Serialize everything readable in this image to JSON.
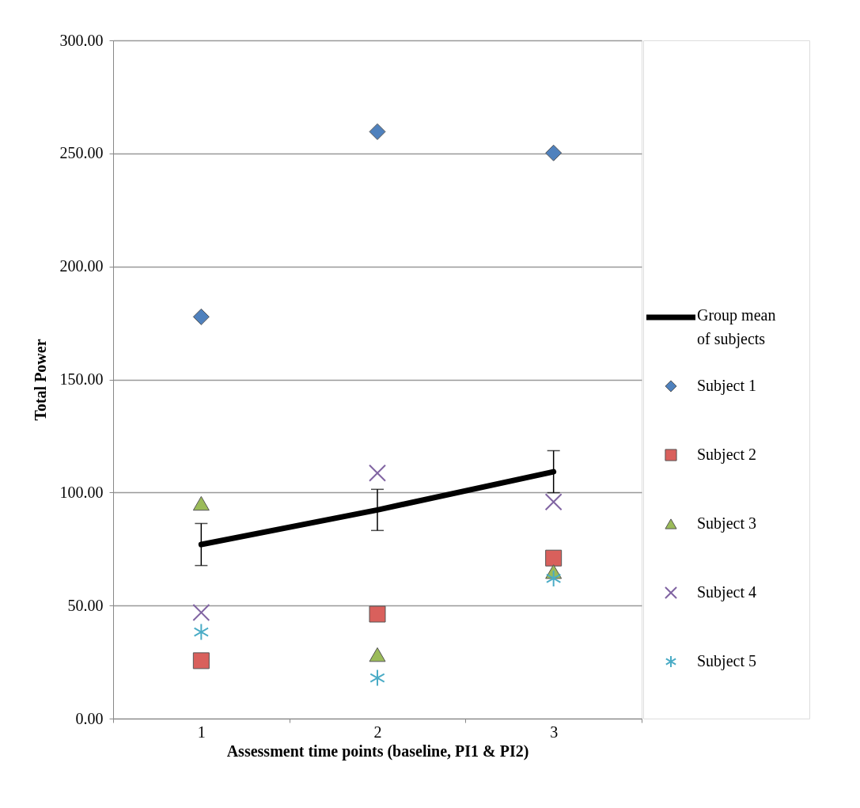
{
  "chart_data": {
    "type": "scatter",
    "xlabel": "Assessment time points (baseline, PI1 & PI2)",
    "ylabel": "Total Power",
    "categories": [
      "1",
      "2",
      "3"
    ],
    "ylim": [
      0,
      300
    ],
    "yticks": [
      {
        "value": 0,
        "label": "0.00"
      },
      {
        "value": 50,
        "label": "50.00"
      },
      {
        "value": 100,
        "label": "100.00"
      },
      {
        "value": 150,
        "label": "150.00"
      },
      {
        "value": 200,
        "label": "200.00"
      },
      {
        "value": 250,
        "label": "250.00"
      },
      {
        "value": 300,
        "label": "300.00"
      }
    ],
    "grid": "y",
    "legend": "right",
    "series": [
      {
        "name": "Group mean of subjects",
        "type": "line",
        "color": "#000000",
        "marker": "none",
        "values": [
          77,
          92.3,
          109.2
        ],
        "errors": [
          9.3,
          9.1,
          9.3
        ]
      },
      {
        "name": "Subject 1",
        "color": "#4f81bd",
        "marker": "diamond",
        "values": [
          177.7,
          259.6,
          250.2
        ]
      },
      {
        "name": "Subject 2",
        "color": "#d9605c",
        "marker": "square",
        "values": [
          25.6,
          46.2,
          71
        ]
      },
      {
        "name": "Subject 3",
        "color": "#9bbb59",
        "marker": "triangle",
        "values": [
          95.2,
          28.3,
          65
        ]
      },
      {
        "name": "Subject 4",
        "color": "#8064a2",
        "marker": "cross",
        "values": [
          46.9,
          108.6,
          95.8
        ]
      },
      {
        "name": "Subject 5",
        "color": "#4bacc6",
        "marker": "cross",
        "values": [
          38.3,
          18.0,
          62
        ]
      }
    ]
  }
}
